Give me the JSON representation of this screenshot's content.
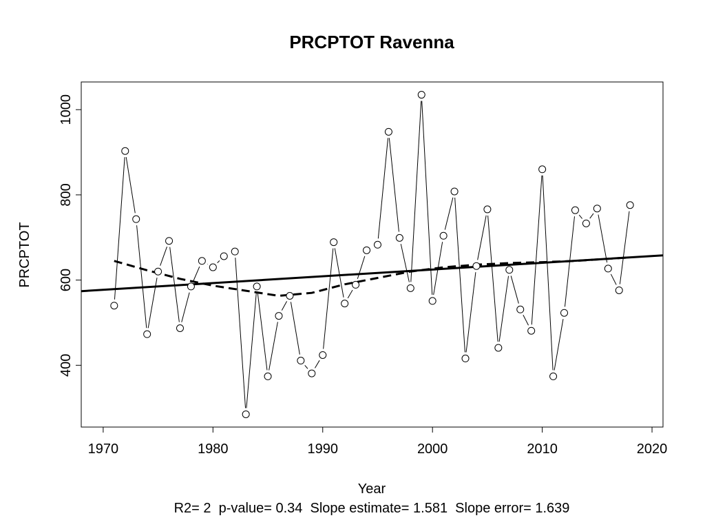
{
  "chart_data": {
    "type": "line",
    "title": "PRCPTOT   Ravenna",
    "xlabel": "Year",
    "ylabel": "PRCPTOT",
    "xlim": [
      1968,
      2021
    ],
    "ylim": [
      255,
      1065
    ],
    "xticks": [
      1970,
      1980,
      1990,
      2000,
      2010,
      2020
    ],
    "yticks": [
      400,
      600,
      800,
      1000
    ],
    "grid": false,
    "stats_text": "R2= 2  p-value= 0.34  Slope estimate= 1.581  Slope error= 1.639",
    "series": [
      {
        "kind": "observed",
        "x": [
          1971,
          1972,
          1973,
          1974,
          1975,
          1976,
          1977,
          1978,
          1979,
          1980,
          1981,
          1982,
          1983,
          1984,
          1985,
          1986,
          1987,
          1988,
          1989,
          1990,
          1991,
          1992,
          1993,
          1994,
          1995,
          1996,
          1997,
          1998,
          1999,
          2000,
          2001,
          2002,
          2003,
          2004,
          2005,
          2006,
          2007,
          2008,
          2009,
          2010,
          2011,
          2012,
          2013,
          2014,
          2015,
          2016,
          2017,
          2018
        ],
        "y": [
          540,
          903,
          743,
          473,
          620,
          692,
          487,
          585,
          645,
          630,
          656,
          667,
          285,
          585,
          374,
          516,
          563,
          411,
          381,
          424,
          689,
          545,
          589,
          670,
          683,
          948,
          699,
          581,
          1035,
          551,
          704,
          808,
          416,
          633,
          766,
          441,
          624,
          531,
          481,
          860,
          374,
          523,
          764,
          733,
          768,
          627,
          576,
          776
        ]
      },
      {
        "kind": "linear-trend",
        "x": [
          1968,
          2021
        ],
        "y": [
          574,
          658
        ]
      },
      {
        "kind": "smoothed-trend",
        "x": [
          1971,
          1974,
          1977,
          1980,
          1983,
          1986,
          1989,
          1992,
          1995,
          1998,
          2001,
          2004,
          2007,
          2010,
          2013,
          2016,
          2018
        ],
        "y": [
          645,
          623,
          603,
          587,
          575,
          563,
          570,
          590,
          605,
          620,
          630,
          636,
          640,
          642,
          645,
          650,
          653
        ]
      }
    ]
  }
}
